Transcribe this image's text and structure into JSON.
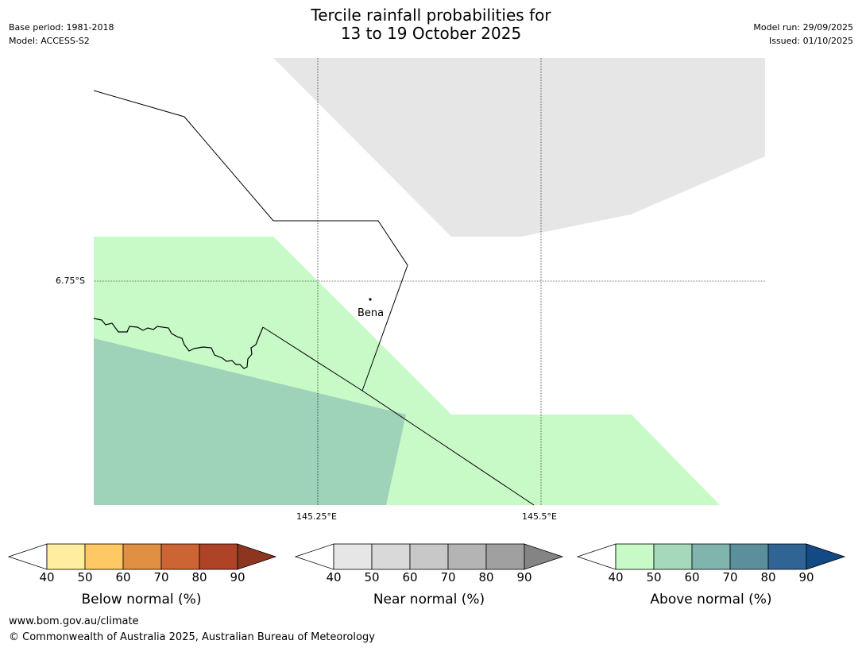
{
  "header": {
    "title_line1": "Tercile rainfall probabilities for",
    "title_line2": "13 to 19 October 2025",
    "base_period": "Base period: 1981-2018",
    "model": "Model: ACCESS-S2",
    "model_run": "Model run: 29/09/2025",
    "issued": "Issued: 01/10/2025"
  },
  "map": {
    "lat_label": "6.75°S",
    "lon_labels": [
      "145.25°E",
      "145.5°E"
    ],
    "place_name": "Bena",
    "colors": {
      "near_normal_40": "#e6e6e6",
      "above_normal_40": "#c8fac8",
      "above_normal_50": "#9ed2b9",
      "boundary": "#000000"
    }
  },
  "colorbars": [
    {
      "label": "Below normal (%)",
      "ticks": [
        "40",
        "50",
        "60",
        "70",
        "80",
        "90"
      ],
      "colors": [
        "#ffeda0",
        "#fec964",
        "#e08f43",
        "#cc6533",
        "#ae4425",
        "#8e3520"
      ]
    },
    {
      "label": "Near normal (%)",
      "ticks": [
        "40",
        "50",
        "60",
        "70",
        "80",
        "90"
      ],
      "colors": [
        "#e6e6e6",
        "#d9d9d9",
        "#c8c8c8",
        "#b4b4b4",
        "#a0a0a0",
        "#848484"
      ]
    },
    {
      "label": "Above normal (%)",
      "ticks": [
        "40",
        "50",
        "60",
        "70",
        "80",
        "90"
      ],
      "colors": [
        "#c8fac8",
        "#a6d8bb",
        "#80b5ad",
        "#5b8f9c",
        "#306494",
        "#134a86"
      ]
    }
  ],
  "footer": {
    "url": "www.bom.gov.au/climate",
    "copyright": "© Commonwealth of Australia 2025, Australian Bureau of Meteorology"
  }
}
